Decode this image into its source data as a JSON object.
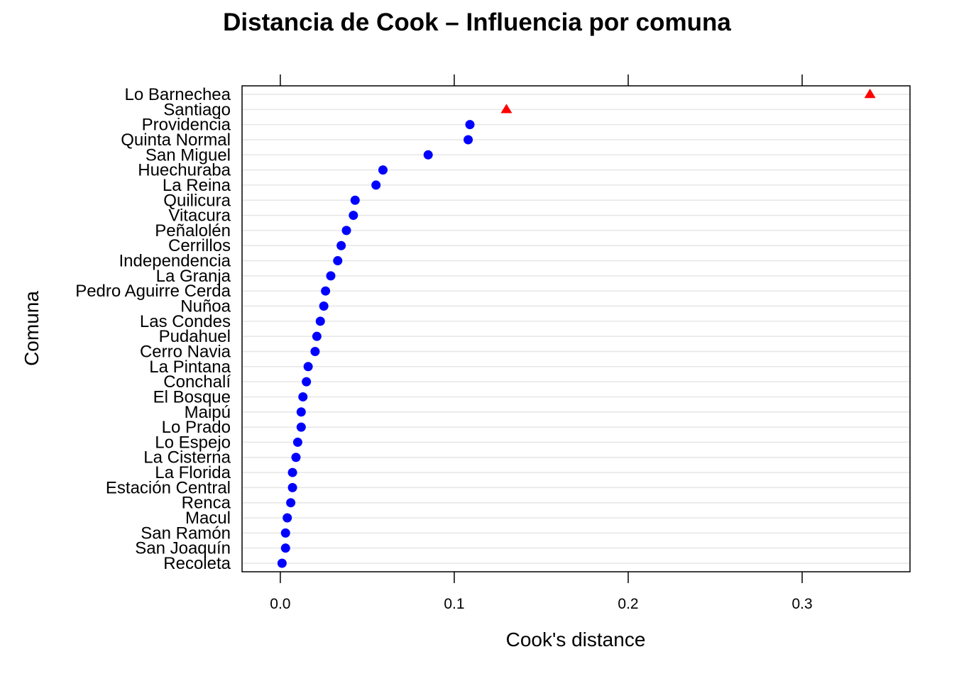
{
  "chart_data": {
    "type": "scatter",
    "title": "Distancia de Cook – Influencia por comuna",
    "xlabel": "Cook's distance",
    "ylabel": "Comuna",
    "xlim": [
      -0.022,
      0.362
    ],
    "xticks": [
      0.0,
      0.1,
      0.2,
      0.3
    ],
    "xtick_labels": [
      "0.0",
      "0.1",
      "0.2",
      "0.3"
    ],
    "grid": "horizontal",
    "colors": {
      "normal": "#0000ff",
      "influential": "#ff0000",
      "grid": "#e6e6e6"
    },
    "categories": [
      "Lo Barnechea",
      "Santiago",
      "Providencia",
      "Quinta Normal",
      "San Miguel",
      "Huechuraba",
      "La Reina",
      "Quilicura",
      "Vitacura",
      "Peñalolén",
      "Cerrillos",
      "Independencia",
      "La Granja",
      "Pedro Aguirre Cerda",
      "Nuñoa",
      "Las Condes",
      "Pudahuel",
      "Cerro Navia",
      "La Pintana",
      "Conchalí",
      "El Bosque",
      "Maipú",
      "Lo Prado",
      "Lo Espejo",
      "La Cisterna",
      "La Florida",
      "Estación Central",
      "Renca",
      "Macul",
      "San Ramón",
      "San Joaquín",
      "Recoleta"
    ],
    "values": [
      0.339,
      0.13,
      0.109,
      0.108,
      0.085,
      0.059,
      0.055,
      0.043,
      0.042,
      0.038,
      0.035,
      0.033,
      0.029,
      0.026,
      0.025,
      0.023,
      0.021,
      0.02,
      0.016,
      0.015,
      0.013,
      0.012,
      0.012,
      0.01,
      0.009,
      0.007,
      0.007,
      0.006,
      0.004,
      0.003,
      0.003,
      0.001
    ],
    "influential": [
      true,
      true,
      false,
      false,
      false,
      false,
      false,
      false,
      false,
      false,
      false,
      false,
      false,
      false,
      false,
      false,
      false,
      false,
      false,
      false,
      false,
      false,
      false,
      false,
      false,
      false,
      false,
      false,
      false,
      false,
      false,
      false
    ]
  }
}
